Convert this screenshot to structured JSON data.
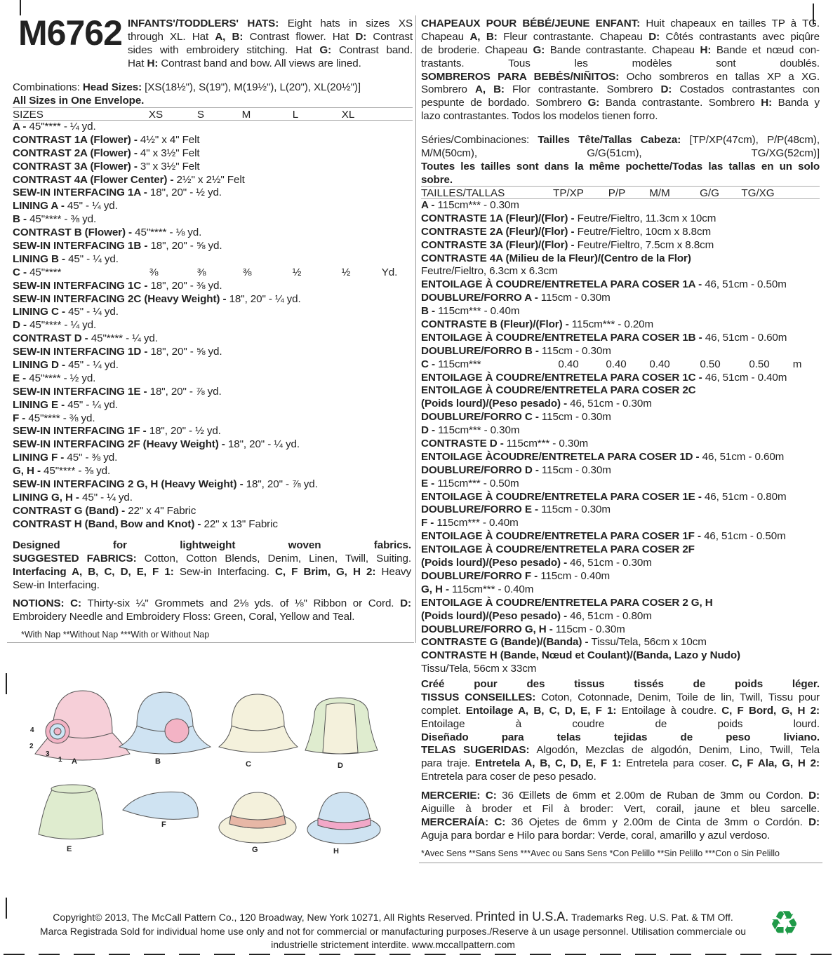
{
  "pattern_number": "M6762",
  "left": {
    "header": [
      [
        [
          "b",
          "INFANTS'/TODDLERS' HATS:"
        ],
        [
          "n",
          " Eight hats in sizes XS"
        ]
      ],
      [
        [
          "n",
          "through XL. Hat "
        ],
        [
          "b",
          "A, B:"
        ],
        [
          "n",
          " Contrast flower. Hat "
        ],
        [
          "b",
          "D:"
        ],
        [
          "n",
          " Contrast"
        ]
      ],
      [
        [
          "n",
          "sides with embroidery stitching. Hat "
        ],
        [
          "b",
          "G:"
        ],
        [
          "n",
          " Contrast band."
        ]
      ],
      [
        [
          "n",
          "Hat "
        ],
        [
          "b",
          "H:"
        ],
        [
          "n",
          " Contrast band and bow. All views are lined."
        ]
      ]
    ],
    "intro": [
      [
        [
          "n",
          "Combinations: "
        ],
        [
          "b",
          "Head Sizes:"
        ],
        [
          "n",
          " [XS(18½\"), S(19\"), M(19½\"), L(20\"), XL(20½\")]"
        ]
      ],
      [
        [
          "b",
          "All Sizes in One Envelope."
        ]
      ]
    ],
    "sizes_header": {
      "label": "SIZES",
      "cols": [
        "XS",
        "S",
        "M",
        "L",
        "XL"
      ]
    },
    "rows": [
      [
        [
          "b",
          "A - "
        ],
        [
          "n",
          "45\"**** - ¼ yd."
        ]
      ],
      [
        [
          "b",
          "CONTRAST 1A (Flower) - "
        ],
        [
          "n",
          "4½\" x 4\" Felt"
        ]
      ],
      [
        [
          "b",
          "CONTRAST 2A (Flower) - "
        ],
        [
          "n",
          "4\" x 3½\" Felt"
        ]
      ],
      [
        [
          "b",
          "CONTRAST 3A (Flower) - "
        ],
        [
          "n",
          "3\" x 3½\" Felt"
        ]
      ],
      [
        [
          "b",
          "CONTRAST 4A (Flower Center) - "
        ],
        [
          "n",
          "2½\" x 2½\" Felt"
        ]
      ],
      [
        [
          "b",
          "SEW-IN INTERFACING 1A - "
        ],
        [
          "n",
          "18\", 20\" - ½ yd."
        ]
      ],
      [
        [
          "b",
          "LINING A - "
        ],
        [
          "n",
          "45\" - ¼ yd."
        ]
      ],
      [
        [
          "b",
          "B - "
        ],
        [
          "n",
          "45\"**** - ⅜ yd."
        ]
      ],
      [
        [
          "b",
          "CONTRAST B (Flower) - "
        ],
        [
          "n",
          "45\"**** - ⅛ yd."
        ]
      ],
      [
        [
          "b",
          "SEW-IN INTERFACING 1B - "
        ],
        [
          "n",
          "18\", 20\" - ⅝ yd."
        ]
      ],
      [
        [
          "b",
          "LINING B - "
        ],
        [
          "n",
          "45\" - ¼ yd."
        ]
      ],
      [
        [
          "b",
          "C - "
        ],
        [
          "n",
          "45\"****"
        ],
        [
          "c0",
          "⅜"
        ],
        [
          "c1",
          "⅜"
        ],
        [
          "c2",
          "⅜"
        ],
        [
          "c3",
          "½"
        ],
        [
          "c4",
          "½"
        ],
        [
          "c5",
          "Yd."
        ]
      ],
      [
        [
          "b",
          "SEW-IN INTERFACING 1C - "
        ],
        [
          "n",
          "18\", 20\" - ⅜ yd."
        ]
      ],
      [
        [
          "b",
          "SEW-IN INTERFACING 2C (Heavy Weight) - "
        ],
        [
          "n",
          "18\", 20\" - ¼ yd."
        ]
      ],
      [
        [
          "b",
          "LINING C - "
        ],
        [
          "n",
          "45\" - ¼ yd."
        ]
      ],
      [
        [
          "b",
          "D - "
        ],
        [
          "n",
          "45\"**** - ¼ yd."
        ]
      ],
      [
        [
          "b",
          "CONTRAST D - "
        ],
        [
          "n",
          "45\"**** - ¼ yd."
        ]
      ],
      [
        [
          "b",
          "SEW-IN INTERFACING 1D - "
        ],
        [
          "n",
          "18\", 20\" - ⅝ yd."
        ]
      ],
      [
        [
          "b",
          "LINING D - "
        ],
        [
          "n",
          "45\" - ¼ yd."
        ]
      ],
      [
        [
          "b",
          "E - "
        ],
        [
          "n",
          "45\"**** - ½ yd."
        ]
      ],
      [
        [
          "b",
          "SEW-IN INTERFACING 1E - "
        ],
        [
          "n",
          "18\", 20\" - ⅞ yd."
        ]
      ],
      [
        [
          "b",
          "LINING E - "
        ],
        [
          "n",
          "45\" - ¼ yd."
        ]
      ],
      [
        [
          "b",
          "F - "
        ],
        [
          "n",
          "45\"**** - ⅜ yd."
        ]
      ],
      [
        [
          "b",
          "SEW-IN INTERFACING 1F - "
        ],
        [
          "n",
          "18\", 20\" - ½ yd."
        ]
      ],
      [
        [
          "b",
          "SEW-IN INTERFACING 2F (Heavy Weight) - "
        ],
        [
          "n",
          "18\", 20\" - ¼ yd."
        ]
      ],
      [
        [
          "b",
          "LINING F - "
        ],
        [
          "n",
          "45\" - ⅜ yd."
        ]
      ],
      [
        [
          "b",
          "G, H - "
        ],
        [
          "n",
          "45\"**** - ⅜ yd."
        ]
      ],
      [
        [
          "b",
          "SEW-IN INTERFACING 2 G, H (Heavy Weight) - "
        ],
        [
          "n",
          "18\", 20\" - ⅞ yd."
        ]
      ],
      [
        [
          "b",
          "LINING G, H - "
        ],
        [
          "n",
          "45\" - ¼ yd."
        ]
      ],
      [
        [
          "b",
          "CONTRAST G (Band) - "
        ],
        [
          "n",
          "22\" x 4\" Fabric"
        ]
      ],
      [
        [
          "b",
          "CONTRAST H (Band, Bow and Knot) - "
        ],
        [
          "n",
          "22\" x 13\" Fabric"
        ]
      ]
    ],
    "fabrics": [
      [
        [
          "b",
          "Designed for lightweight woven fabrics."
        ]
      ],
      [
        [
          "b",
          "SUGGESTED FABRICS:"
        ],
        [
          "n",
          " Cotton, Cotton Blends, Denim, Linen, Twill, Suiting."
        ]
      ],
      [
        [
          "b",
          "Interfacing A, B, C, D, E, F 1:"
        ],
        [
          "n",
          " Sew-in Interfacing. "
        ],
        [
          "b",
          "C, F Brim, G, H 2:"
        ],
        [
          "n",
          " Heavy"
        ]
      ],
      [
        [
          "n",
          "Sew-in Interfacing."
        ]
      ]
    ],
    "notions": [
      [
        [
          "b",
          "NOTIONS: C:"
        ],
        [
          "n",
          " Thirty-six ¼\" Grommets and 2⅛ yds. of ⅛\" Ribbon or Cord. "
        ],
        [
          "b",
          "D:"
        ]
      ],
      [
        [
          "n",
          "Embroidery Needle and Embroidery Floss: Green, Coral, Yellow and Teal."
        ]
      ]
    ],
    "footnote": "*With Nap **Without Nap ***With or Without Nap"
  },
  "right": {
    "header": [
      [
        [
          "b",
          "CHAPEAUX POUR BÉBÉ/JEUNE ENFANT:"
        ],
        [
          "n",
          " Huit chapeaux en tailles TP à TG."
        ]
      ],
      [
        [
          "n",
          "Chapeau "
        ],
        [
          "b",
          "A, B:"
        ],
        [
          "n",
          " Fleur contrastante. Chapeau "
        ],
        [
          "b",
          "D:"
        ],
        [
          "n",
          " Côtés contrastants avec piqûre"
        ]
      ],
      [
        [
          "n",
          "de broderie. Chapeau "
        ],
        [
          "b",
          "G:"
        ],
        [
          "n",
          " Bande contrastante. Chapeau "
        ],
        [
          "b",
          "H:"
        ],
        [
          "n",
          " Bande et nœud con-"
        ]
      ],
      [
        [
          "n",
          "trastants. Tous les modèles sont doublés."
        ]
      ],
      [
        [
          "b",
          "SOMBREROS PARA BEBÉS/NIÑITOS:"
        ],
        [
          "n",
          " Ocho sombreros en tallas XP a XG."
        ]
      ],
      [
        [
          "n",
          "Sombrero "
        ],
        [
          "b",
          "A, B:"
        ],
        [
          "n",
          " Flor contrastante. Sombrero "
        ],
        [
          "b",
          "D:"
        ],
        [
          "n",
          " Costados contrastantes con"
        ]
      ],
      [
        [
          "n",
          "pespunte de bordado. Sombrero "
        ],
        [
          "b",
          "G:"
        ],
        [
          "n",
          " Banda contrastante. Sombrero "
        ],
        [
          "b",
          "H:"
        ],
        [
          "n",
          " Banda y"
        ]
      ],
      [
        [
          "n",
          "lazo contrastantes. Todos los modelos tienen forro."
        ]
      ]
    ],
    "intro": [
      [
        [
          "n",
          "Séries/Combinaciones: "
        ],
        [
          "b",
          "Tailles Tête/Tallas Cabeza:"
        ],
        [
          "n",
          " [TP/XP(47cm), P/P(48cm),"
        ]
      ],
      [
        [
          "n",
          "M/M(50cm), G/G(51cm), TG/XG(52cm)]"
        ]
      ],
      [
        [
          "b",
          "Toutes les tailles sont dans la même pochette/Todas las tallas en un solo"
        ]
      ],
      [
        [
          "b",
          "sobre."
        ]
      ]
    ],
    "sizes_header": {
      "label": "TAILLES/TALLAS",
      "cols": [
        "TP/XP",
        "P/P",
        "M/M",
        "G/G",
        "TG/XG"
      ]
    },
    "rows": [
      [
        [
          "b",
          "A - "
        ],
        [
          "n",
          "115cm*** - 0.30m"
        ]
      ],
      [
        [
          "b",
          "CONTRASTE 1A (Fleur)/(Flor) - "
        ],
        [
          "n",
          "Feutre/Fieltro, 11.3cm x 10cm"
        ]
      ],
      [
        [
          "b",
          "CONTRASTE 2A (Fleur)/(Flor) - "
        ],
        [
          "n",
          "Feutre/Fieltro, 10cm x 8.8cm"
        ]
      ],
      [
        [
          "b",
          "CONTRASTE 3A (Fleur)/(Flor) - "
        ],
        [
          "n",
          "Feutre/Fieltro, 7.5cm x 8.8cm"
        ]
      ],
      [
        [
          "b",
          "CONTRASTE 4A (Milieu de la Fleur)/(Centro de la Flor)"
        ]
      ],
      [
        [
          "n",
          "Feutre/Fieltro, 6.3cm x 6.3cm"
        ]
      ],
      [
        [
          "b",
          "ENTOILAGE À COUDRE/ENTRETELA PARA COSER 1A - "
        ],
        [
          "n",
          "46, 51cm - 0.50m"
        ]
      ],
      [
        [
          "b",
          "DOUBLURE/FORRO A - "
        ],
        [
          "n",
          "115cm - 0.30m"
        ]
      ],
      [
        [
          "b",
          "B - "
        ],
        [
          "n",
          "115cm*** - 0.40m"
        ]
      ],
      [
        [
          "b",
          "CONTRASTE B (Fleur)/(Flor) - "
        ],
        [
          "n",
          "115cm*** - 0.20m"
        ]
      ],
      [
        [
          "b",
          "ENTOILAGE À COUDRE/ENTRETELA PARA COSER 1B - "
        ],
        [
          "n",
          "46, 51cm - 0.60m"
        ]
      ],
      [
        [
          "b",
          "DOUBLURE/FORRO B - "
        ],
        [
          "n",
          "115cm - 0.30m"
        ]
      ],
      [
        [
          "b",
          "C - "
        ],
        [
          "n",
          "115cm***"
        ],
        [
          "c0",
          "0.40"
        ],
        [
          "c1",
          "0.40"
        ],
        [
          "c2",
          "0.40"
        ],
        [
          "c3",
          "0.50"
        ],
        [
          "c4",
          "0.50"
        ],
        [
          "c5",
          "m"
        ]
      ],
      [
        [
          "b",
          "ENTOILAGE À COUDRE/ENTRETELA PARA COSER 1C - "
        ],
        [
          "n",
          "46, 51cm - 0.40m"
        ]
      ],
      [
        [
          "b",
          "ENTOILAGE À COUDRE/ENTRETELA PARA COSER 2C"
        ]
      ],
      [
        [
          "b",
          "(Poids lourd)/(Peso pesado) - "
        ],
        [
          "n",
          "46, 51cm - 0.30m"
        ]
      ],
      [
        [
          "b",
          "DOUBLURE/FORRO C - "
        ],
        [
          "n",
          "115cm - 0.30m"
        ]
      ],
      [
        [
          "b",
          "D - "
        ],
        [
          "n",
          "115cm*** - 0.30m"
        ]
      ],
      [
        [
          "b",
          "CONTRASTE D - "
        ],
        [
          "n",
          "115cm*** - 0.30m"
        ]
      ],
      [
        [
          "b",
          "ENTOILAGE ÀCOUDRE/ENTRETELA PARA COSER 1D - "
        ],
        [
          "n",
          "46, 51cm - 0.60m"
        ]
      ],
      [
        [
          "b",
          "DOUBLURE/FORRO D - "
        ],
        [
          "n",
          "115cm - 0.30m"
        ]
      ],
      [
        [
          "b",
          "E - "
        ],
        [
          "n",
          "115cm*** - 0.50m"
        ]
      ],
      [
        [
          "b",
          "ENTOILAGE À COUDRE/ENTRETELA PARA COSER 1E - "
        ],
        [
          "n",
          "46, 51cm - 0.80m"
        ]
      ],
      [
        [
          "b",
          "DOUBLURE/FORRO E - "
        ],
        [
          "n",
          "115cm - 0.30m"
        ]
      ],
      [
        [
          "b",
          "F - "
        ],
        [
          "n",
          "115cm*** - 0.40m"
        ]
      ],
      [
        [
          "b",
          "ENTOILAGE À COUDRE/ENTRETELA PARA COSER 1F - "
        ],
        [
          "n",
          "46, 51cm - 0.50m"
        ]
      ],
      [
        [
          "b",
          "ENTOILAGE À COUDRE/ENTRETELA PARA COSER 2F"
        ]
      ],
      [
        [
          "b",
          "(Poids lourd)/(Peso pesado) - "
        ],
        [
          "n",
          "46, 51cm - 0.30m"
        ]
      ],
      [
        [
          "b",
          "DOUBLURE/FORRO F - "
        ],
        [
          "n",
          "115cm - 0.40m"
        ]
      ],
      [
        [
          "b",
          "G, H - "
        ],
        [
          "n",
          "115cm*** - 0.40m"
        ]
      ],
      [
        [
          "b",
          "ENTOILAGE À COUDRE/ENTRETELA PARA COSER 2 G, H"
        ]
      ],
      [
        [
          "b",
          "(Poids lourd)/(Peso pesado) - "
        ],
        [
          "n",
          "46, 51cm - 0.80m"
        ]
      ],
      [
        [
          "b",
          "DOUBLURE/FORRO G, H - "
        ],
        [
          "n",
          "115cm - 0.30m"
        ]
      ],
      [
        [
          "b",
          "CONTRASTE G (Bande)/(Banda) - "
        ],
        [
          "n",
          "Tissu/Tela, 56cm x 10cm"
        ]
      ],
      [
        [
          "b",
          "CONTRASTE H (Bande, Nœud et Coulant)/(Banda, Lazo y Nudo)"
        ]
      ],
      [
        [
          "n",
          "Tissu/Tela, 56cm x 33cm"
        ]
      ]
    ],
    "fabrics": [
      [
        [
          "b",
          "Créé pour des tissus tissés de poids léger."
        ]
      ],
      [
        [
          "b",
          "TISSUS CONSEILLES:"
        ],
        [
          "n",
          " Coton, Cotonnade, Denim, Toile de lin, Twill, Tissu pour"
        ]
      ],
      [
        [
          "n",
          "complet. "
        ],
        [
          "b",
          "Entoilage A, B, C, D, E, F 1:"
        ],
        [
          "n",
          " Entoilage à coudre. "
        ],
        [
          "b",
          "C, F Bord, G, H 2:"
        ]
      ],
      [
        [
          "n",
          "Entoilage à coudre de poids lourd."
        ]
      ],
      [
        [
          "b",
          "Diseñado para telas tejidas de peso liviano."
        ]
      ],
      [
        [
          "b",
          "TELAS SUGERIDAS:"
        ],
        [
          "n",
          " Algodón, Mezclas de algodón, Denim, Lino, Twill, Tela"
        ]
      ],
      [
        [
          "n",
          "para traje. "
        ],
        [
          "b",
          "Entretela A, B, C, D, E, F 1:"
        ],
        [
          "n",
          " Entretela para coser. "
        ],
        [
          "b",
          "C, F Ala, G, H 2:"
        ]
      ],
      [
        [
          "n",
          "Entretela para coser de peso pesado."
        ]
      ]
    ],
    "notions": [
      [
        [
          "b",
          "MERCERIE: C:"
        ],
        [
          "n",
          " 36 Œillets de 6mm et 2.00m de Ruban de 3mm ou Cordon. "
        ],
        [
          "b",
          "D:"
        ]
      ],
      [
        [
          "n",
          "Aiguille à broder et Fil à broder: Vert, corail, jaune et bleu sarcelle."
        ]
      ],
      [
        [
          "b",
          "MERCERAÍA: C:"
        ],
        [
          "n",
          " 36 Ojetes de 6mm y 2.00m de Cinta de 3mm o Cordón. "
        ],
        [
          "b",
          "D:"
        ]
      ],
      [
        [
          "n",
          "Aguja para bordar e Hilo para bordar: Verde, coral, amarillo y azul verdoso."
        ]
      ]
    ],
    "footnote": "*Avec Sens **Sans Sens ***Avec ou Sans Sens   *Con Pelillo **Sin Pelillo ***Con o Sin Pelillo"
  },
  "views": {
    "labels": [
      "A",
      "B",
      "C",
      "D",
      "E",
      "F",
      "G",
      "H"
    ],
    "flower_callouts": [
      "4",
      "2",
      "3",
      "1"
    ]
  },
  "footer": {
    "line1a": "Copyright© 2013,  The McCall Pattern Co., 120 Broadway, New York 10271, All Rights Reserved.",
    "line1b": "Printed in U.S.A.",
    "line1c": "Trademarks Reg. U.S. Pat. & TM Off.",
    "line2": "Marca Registrada  Sold for individual home use only and not for commercial or manufacturing purposes./Reserve à un usage personnel. Utilisation commerciale ou",
    "line3": "industrielle strictement interdite. www.mccallpattern.com"
  },
  "colors": {
    "pink": "#f6cfd8",
    "blue": "#cfe3f2",
    "cream": "#f4f1dc",
    "green": "#dfeccf",
    "recycle": "#1f9a48"
  }
}
